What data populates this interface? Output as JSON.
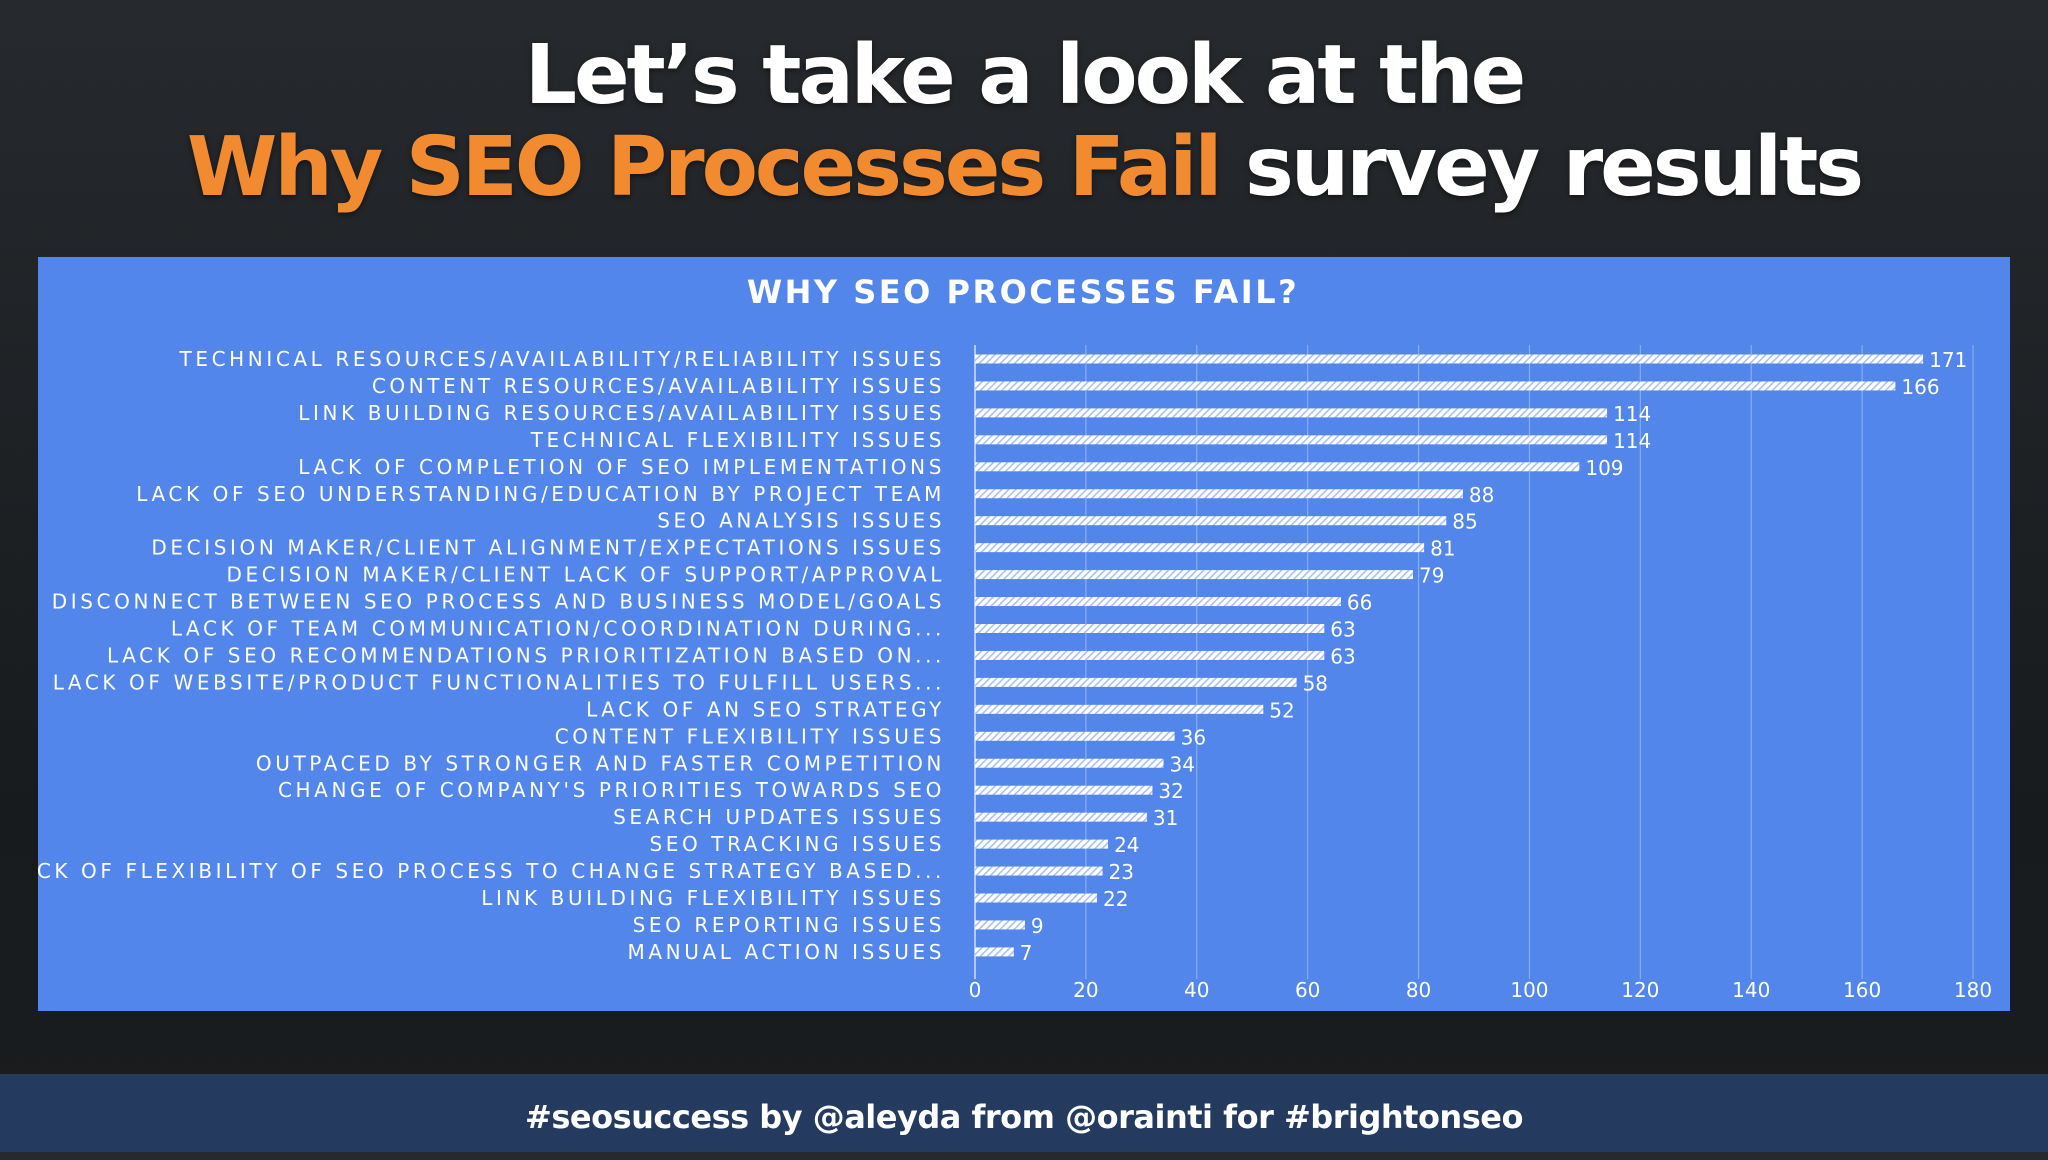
{
  "headline": {
    "line1": "Let’s take a look at the",
    "line2_accent": "Why SEO Processes Fail",
    "line2_rest": "survey results"
  },
  "footer": {
    "text": "#seosuccess by @aleyda from @orainti for #brightonseo"
  },
  "colors": {
    "chart_background": "#5286ea",
    "headline_accent": "#f28b30",
    "footer_background": "#243a5e",
    "text": "#ffffff"
  },
  "chart_data": {
    "type": "bar",
    "orientation": "horizontal",
    "title": "WHY SEO PROCESSES FAIL?",
    "categories": [
      "TECHNICAL RESOURCES/AVAILABILITY/RELIABILITY ISSUES",
      "CONTENT RESOURCES/AVAILABILITY ISSUES",
      "LINK BUILDING RESOURCES/AVAILABILITY ISSUES",
      "TECHNICAL FLEXIBILITY ISSUES",
      "LACK OF COMPLETION OF SEO IMPLEMENTATIONS",
      "LACK OF SEO UNDERSTANDING/EDUCATION BY PROJECT TEAM",
      "SEO ANALYSIS ISSUES",
      "DECISION MAKER/CLIENT ALIGNMENT/EXPECTATIONS ISSUES",
      "DECISION MAKER/CLIENT LACK OF SUPPORT/APPROVAL",
      "DISCONNECT BETWEEN SEO PROCESS AND BUSINESS MODEL/GOALS",
      "LACK OF TEAM COMMUNICATION/COORDINATION DURING...",
      "LACK OF SEO RECOMMENDATIONS PRIORITIZATION BASED ON...",
      "LACK OF WEBSITE/PRODUCT FUNCTIONALITIES TO FULFILL USERS...",
      "LACK OF AN SEO STRATEGY",
      "CONTENT FLEXIBILITY ISSUES",
      "OUTPACED BY STRONGER AND FASTER COMPETITION",
      "CHANGE OF COMPANY'S PRIORITIES TOWARDS SEO",
      "SEARCH UPDATES ISSUES",
      "SEO TRACKING ISSUES",
      "LACK OF FLEXIBILITY OF SEO PROCESS TO CHANGE STRATEGY BASED...",
      "LINK BUILDING FLEXIBILITY ISSUES",
      "SEO REPORTING ISSUES",
      "MANUAL ACTION ISSUES"
    ],
    "values": [
      171,
      166,
      114,
      114,
      109,
      88,
      85,
      81,
      79,
      66,
      63,
      63,
      58,
      52,
      36,
      34,
      32,
      31,
      24,
      23,
      22,
      9,
      7
    ],
    "xlim": [
      0,
      180
    ],
    "xticks": [
      0,
      20,
      40,
      60,
      80,
      100,
      120,
      140,
      160,
      180
    ],
    "grid": true,
    "data_labels": true,
    "legend": "none"
  }
}
